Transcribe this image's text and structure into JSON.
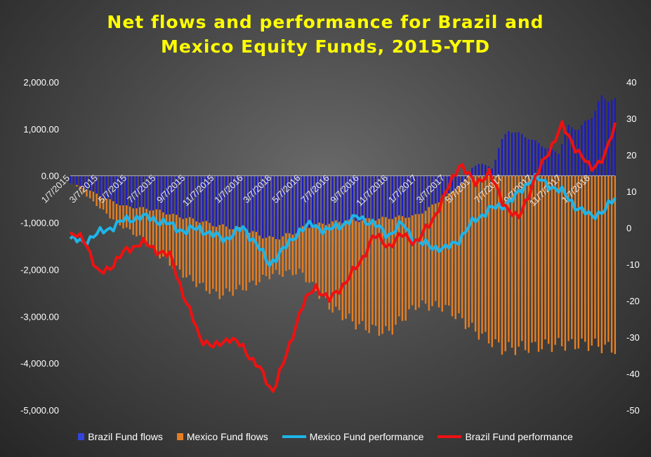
{
  "chart_data": {
    "type": "bar+line",
    "title_line1": "Net flows and performance  for Brazil  and",
    "title_line2": "Mexico  Equity  Funds,  2015-YTD",
    "y_left": {
      "min": -5000,
      "max": 2000,
      "ticks": [
        "2,000.00",
        "1,000.00",
        "0.00",
        "-1,000.00",
        "-2,000.00",
        "-3,000.00",
        "-4,000.00",
        "-5,000.00"
      ],
      "tick_values": [
        2000,
        1000,
        0,
        -1000,
        -2000,
        -3000,
        -4000,
        -5000
      ]
    },
    "y_right": {
      "min": -50,
      "max": 40,
      "ticks": [
        "40",
        "30",
        "20",
        "10",
        "0",
        "-10",
        "-20",
        "-30",
        "-40",
        "-50"
      ],
      "tick_values": [
        40,
        30,
        20,
        10,
        0,
        -10,
        -20,
        -30,
        -40,
        -50
      ]
    },
    "x_ticks": [
      "1/7/2015",
      "3/7/2015",
      "5/7/2015",
      "7/7/2015",
      "9/7/2015",
      "11/7/2015",
      "1/7/2016",
      "3/7/2016",
      "5/7/2016",
      "7/7/2016",
      "9/7/2016",
      "11/7/2016",
      "1/7/2017",
      "3/7/2017",
      "5/7/2017",
      "7/7/2017",
      "9/7/2017",
      "11/7/2017",
      "1/7/2018"
    ],
    "x_range": [
      "2015-01-07",
      "2018-02-28"
    ],
    "series": [
      {
        "name": "Brazil Fund flows",
        "kind": "bar",
        "axis": "left",
        "color": "#1c1cc0",
        "points": [
          [
            "2015-01-07",
            -150
          ],
          [
            "2015-02-15",
            -300
          ],
          [
            "2015-03-15",
            -450
          ],
          [
            "2015-05-01",
            -650
          ],
          [
            "2015-06-15",
            -700
          ],
          [
            "2015-07-15",
            -750
          ],
          [
            "2015-08-15",
            -850
          ],
          [
            "2015-10-01",
            -950
          ],
          [
            "2015-11-07",
            -1050
          ],
          [
            "2016-01-07",
            -1150
          ],
          [
            "2016-03-07",
            -1350
          ],
          [
            "2016-04-15",
            -1250
          ],
          [
            "2016-05-15",
            -1100
          ],
          [
            "2016-07-07",
            -1000
          ],
          [
            "2016-09-07",
            -950
          ],
          [
            "2016-11-07",
            -900
          ],
          [
            "2017-01-07",
            -850
          ],
          [
            "2017-03-01",
            -500
          ],
          [
            "2017-04-15",
            -150
          ],
          [
            "2017-05-01",
            150
          ],
          [
            "2017-05-20",
            280
          ],
          [
            "2017-06-15",
            150
          ],
          [
            "2017-07-01",
            700
          ],
          [
            "2017-07-20",
            980
          ],
          [
            "2017-09-01",
            800
          ],
          [
            "2017-10-01",
            620
          ],
          [
            "2017-11-01",
            480
          ],
          [
            "2017-11-20",
            1050
          ],
          [
            "2017-12-15",
            1000
          ],
          [
            "2018-01-10",
            1280
          ],
          [
            "2018-02-01",
            1680
          ],
          [
            "2018-02-28",
            1600
          ]
        ]
      },
      {
        "name": "Mexico Fund flows",
        "kind": "bar",
        "axis": "left",
        "color": "#e67e22",
        "points": [
          [
            "2015-01-07",
            -100
          ],
          [
            "2015-03-01",
            -600
          ],
          [
            "2015-04-15",
            -1000
          ],
          [
            "2015-06-01",
            -1300
          ],
          [
            "2015-07-15",
            -1700
          ],
          [
            "2015-09-15",
            -2200
          ],
          [
            "2015-11-15",
            -2550
          ],
          [
            "2016-01-07",
            -2400
          ],
          [
            "2016-03-07",
            -2100
          ],
          [
            "2016-05-07",
            -2050
          ],
          [
            "2016-07-07",
            -2800
          ],
          [
            "2016-09-07",
            -3200
          ],
          [
            "2016-11-07",
            -3350
          ],
          [
            "2017-01-07",
            -2750
          ],
          [
            "2017-03-07",
            -2800
          ],
          [
            "2017-05-07",
            -3300
          ],
          [
            "2017-07-07",
            -3700
          ],
          [
            "2017-09-07",
            -3650
          ],
          [
            "2017-11-07",
            -3600
          ],
          [
            "2018-01-07",
            -3600
          ],
          [
            "2018-02-28",
            -3700
          ]
        ]
      },
      {
        "name": "Mexico Fund performance",
        "kind": "line",
        "axis": "right",
        "color": "#1fb4e8",
        "points": [
          [
            "2015-01-07",
            -3
          ],
          [
            "2015-02-01",
            -4
          ],
          [
            "2015-03-01",
            -2
          ],
          [
            "2015-04-01",
            0
          ],
          [
            "2015-05-01",
            2
          ],
          [
            "2015-06-01",
            3
          ],
          [
            "2015-07-01",
            2.5
          ],
          [
            "2015-08-01",
            1
          ],
          [
            "2015-09-07",
            -1
          ],
          [
            "2015-10-07",
            0
          ],
          [
            "2015-11-01",
            -2
          ],
          [
            "2015-12-01",
            -3
          ],
          [
            "2016-01-07",
            0
          ],
          [
            "2016-02-01",
            -4
          ],
          [
            "2016-03-01",
            -10
          ],
          [
            "2016-04-01",
            -6
          ],
          [
            "2016-05-01",
            -1
          ],
          [
            "2016-06-01",
            1
          ],
          [
            "2016-07-01",
            -1
          ],
          [
            "2016-08-01",
            1
          ],
          [
            "2016-09-07",
            3
          ],
          [
            "2016-10-07",
            1
          ],
          [
            "2016-11-07",
            -2
          ],
          [
            "2016-12-07",
            1
          ],
          [
            "2017-01-07",
            -4
          ],
          [
            "2017-02-07",
            -5
          ],
          [
            "2017-03-07",
            -6
          ],
          [
            "2017-04-07",
            -3
          ],
          [
            "2017-05-07",
            2
          ],
          [
            "2017-06-07",
            5
          ],
          [
            "2017-07-07",
            6
          ],
          [
            "2017-08-07",
            9
          ],
          [
            "2017-09-07",
            14
          ],
          [
            "2017-10-07",
            12
          ],
          [
            "2017-11-07",
            10
          ],
          [
            "2017-12-07",
            6
          ],
          [
            "2018-01-07",
            3
          ],
          [
            "2018-02-07",
            5
          ],
          [
            "2018-02-28",
            8
          ]
        ]
      },
      {
        "name": "Brazil Fund performance",
        "kind": "line",
        "axis": "right",
        "color": "#ee1111",
        "points": [
          [
            "2015-01-07",
            -2
          ],
          [
            "2015-02-07",
            -3
          ],
          [
            "2015-03-07",
            -13
          ],
          [
            "2015-04-07",
            -10
          ],
          [
            "2015-05-07",
            -6
          ],
          [
            "2015-06-07",
            -4
          ],
          [
            "2015-07-07",
            -6
          ],
          [
            "2015-08-07",
            -8
          ],
          [
            "2015-09-07",
            -20
          ],
          [
            "2015-10-07",
            -30
          ],
          [
            "2015-11-07",
            -33
          ],
          [
            "2015-12-07",
            -30
          ],
          [
            "2016-01-07",
            -33
          ],
          [
            "2016-02-07",
            -38
          ],
          [
            "2016-03-07",
            -45
          ],
          [
            "2016-04-07",
            -35
          ],
          [
            "2016-05-07",
            -22
          ],
          [
            "2016-06-07",
            -16
          ],
          [
            "2016-07-07",
            -20
          ],
          [
            "2016-08-07",
            -15
          ],
          [
            "2016-09-07",
            -10
          ],
          [
            "2016-10-07",
            -2
          ],
          [
            "2016-11-07",
            -5
          ],
          [
            "2016-12-07",
            -2
          ],
          [
            "2017-01-07",
            -4
          ],
          [
            "2017-02-07",
            2
          ],
          [
            "2017-03-07",
            9
          ],
          [
            "2017-04-07",
            18
          ],
          [
            "2017-05-07",
            12
          ],
          [
            "2017-06-07",
            15
          ],
          [
            "2017-07-07",
            7
          ],
          [
            "2017-08-07",
            2
          ],
          [
            "2017-09-07",
            12
          ],
          [
            "2017-10-07",
            20
          ],
          [
            "2017-11-07",
            28
          ],
          [
            "2017-12-07",
            22
          ],
          [
            "2018-01-07",
            16
          ],
          [
            "2018-02-07",
            20
          ],
          [
            "2018-02-28",
            28
          ]
        ]
      }
    ],
    "legend_position": "bottom",
    "grid": false
  }
}
